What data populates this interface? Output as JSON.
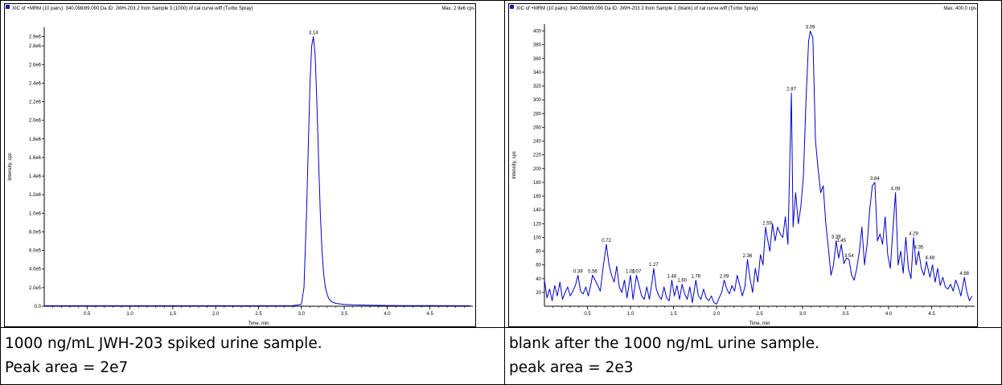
{
  "chart_data": [
    {
      "type": "line",
      "header": "XIC of +MRM (10 pairs): 340.098/89.090 Da ID: JWH-203 2 from Sample 3 (1000) of cal curve.wiff (Turbo Spray)",
      "max_label": "Max. 2.9e6 cps",
      "xlabel": "Time, min",
      "ylabel": "Intensity, cps",
      "xlim": [
        0.0,
        5.0
      ],
      "ylim": [
        0,
        3000000
      ],
      "x_ticks": [
        "0.5",
        "1.0",
        "1.5",
        "2.0",
        "2.5",
        "3.0",
        "3.5",
        "4.0",
        "4.5"
      ],
      "y_ticks": [
        "0.0",
        "2.0e5",
        "4.0e5",
        "6.0e5",
        "8.0e5",
        "1.0e6",
        "1.2e6",
        "1.4e6",
        "1.6e6",
        "1.8e6",
        "2.0e6",
        "2.2e6",
        "2.4e6",
        "2.6e6",
        "2.8e6",
        "2.9e6"
      ],
      "line_color": "#0000cc",
      "peak_labels": [
        {
          "x": 3.14,
          "label": "3.14",
          "value": 2900000
        }
      ],
      "series": [
        {
          "x": [
            0.0,
            0.5,
            1.0,
            1.5,
            2.0,
            2.5,
            2.9,
            3.0,
            3.03,
            3.06,
            3.08,
            3.1,
            3.12,
            3.14,
            3.16,
            3.18,
            3.2,
            3.22,
            3.24,
            3.26,
            3.28,
            3.3,
            3.32,
            3.35,
            3.4,
            3.5,
            3.6,
            3.8,
            4.0,
            4.5,
            4.97
          ],
          "values": [
            5000,
            5000,
            5000,
            5000,
            5000,
            5000,
            6000,
            20000,
            200000,
            1000000,
            1700000,
            2400000,
            2800000,
            2900000,
            2700000,
            2200000,
            1600000,
            1000000,
            600000,
            350000,
            200000,
            130000,
            80000,
            50000,
            30000,
            20000,
            15000,
            10000,
            8000,
            6000,
            5000
          ]
        }
      ]
    },
    {
      "type": "line",
      "header": "XIC of +MRM (10 pairs): 340.098/89.090 Da ID: JWH-203 2 from Sample 1 (blank) of cal curve.wiff (Turbo Spray)",
      "max_label": "Max. 400.0 cps",
      "xlabel": "Time, min",
      "ylabel": "Intensity, cps",
      "xlim": [
        0.0,
        5.0
      ],
      "ylim": [
        0,
        410
      ],
      "x_ticks": [
        "0.5",
        "1.0",
        "1.5",
        "2.0",
        "2.5",
        "3.0",
        "3.5",
        "4.0",
        "4.5"
      ],
      "y_ticks": [
        "20",
        "40",
        "60",
        "80",
        "100",
        "120",
        "140",
        "160",
        "180",
        "200",
        "220",
        "240",
        "260",
        "280",
        "300",
        "320",
        "340",
        "360",
        "380",
        "400"
      ],
      "line_color": "#0000cc",
      "peak_labels": [
        {
          "x": 0.39,
          "label": "0.39",
          "value": 45
        },
        {
          "x": 0.56,
          "label": "0.56",
          "value": 45
        },
        {
          "x": 0.72,
          "label": "0.72",
          "value": 90
        },
        {
          "x": 1.0,
          "label": "1.00",
          "value": 45
        },
        {
          "x": 1.07,
          "label": "1.07",
          "value": 45
        },
        {
          "x": 1.27,
          "label": "1.27",
          "value": 55
        },
        {
          "x": 1.48,
          "label": "1.48",
          "value": 38
        },
        {
          "x": 1.6,
          "label": "1.60",
          "value": 32
        },
        {
          "x": 1.76,
          "label": "1.76",
          "value": 38
        },
        {
          "x": 2.09,
          "label": "2.09",
          "value": 38
        },
        {
          "x": 2.36,
          "label": "2.36",
          "value": 68
        },
        {
          "x": 2.59,
          "label": "2.59",
          "value": 115
        },
        {
          "x": 2.87,
          "label": "2.87",
          "value": 310
        },
        {
          "x": 3.09,
          "label": "3.09",
          "value": 400
        },
        {
          "x": 3.39,
          "label": "3.39",
          "value": 95
        },
        {
          "x": 3.45,
          "label": "3.45",
          "value": 90
        },
        {
          "x": 3.54,
          "label": "3.54",
          "value": 68
        },
        {
          "x": 3.84,
          "label": "3.84",
          "value": 180
        },
        {
          "x": 4.08,
          "label": "4.08",
          "value": 165
        },
        {
          "x": 4.29,
          "label": "4.29",
          "value": 100
        },
        {
          "x": 4.35,
          "label": "4.35",
          "value": 80
        },
        {
          "x": 4.48,
          "label": "4.48",
          "value": 65
        },
        {
          "x": 4.88,
          "label": "4.88",
          "value": 42
        }
      ],
      "series": [
        {
          "x": [
            0.0,
            0.03,
            0.06,
            0.09,
            0.12,
            0.15,
            0.18,
            0.21,
            0.24,
            0.27,
            0.3,
            0.33,
            0.36,
            0.39,
            0.42,
            0.45,
            0.48,
            0.51,
            0.54,
            0.56,
            0.59,
            0.62,
            0.65,
            0.68,
            0.72,
            0.75,
            0.78,
            0.81,
            0.84,
            0.87,
            0.9,
            0.93,
            0.96,
            1.0,
            1.03,
            1.07,
            1.1,
            1.13,
            1.16,
            1.19,
            1.22,
            1.25,
            1.27,
            1.3,
            1.33,
            1.36,
            1.39,
            1.42,
            1.45,
            1.48,
            1.51,
            1.54,
            1.57,
            1.6,
            1.63,
            1.66,
            1.69,
            1.72,
            1.76,
            1.79,
            1.82,
            1.85,
            1.88,
            1.91,
            1.94,
            1.97,
            2.0,
            2.03,
            2.06,
            2.09,
            2.12,
            2.15,
            2.18,
            2.21,
            2.24,
            2.27,
            2.3,
            2.33,
            2.36,
            2.39,
            2.42,
            2.45,
            2.48,
            2.51,
            2.54,
            2.57,
            2.59,
            2.62,
            2.65,
            2.68,
            2.71,
            2.74,
            2.77,
            2.8,
            2.83,
            2.87,
            2.89,
            2.92,
            2.95,
            2.98,
            3.01,
            3.04,
            3.07,
            3.09,
            3.12,
            3.15,
            3.18,
            3.21,
            3.24,
            3.27,
            3.3,
            3.33,
            3.36,
            3.39,
            3.42,
            3.45,
            3.48,
            3.51,
            3.54,
            3.57,
            3.6,
            3.63,
            3.66,
            3.69,
            3.72,
            3.75,
            3.78,
            3.81,
            3.84,
            3.87,
            3.9,
            3.93,
            3.96,
            3.99,
            4.02,
            4.05,
            4.08,
            4.11,
            4.14,
            4.17,
            4.2,
            4.23,
            4.26,
            4.29,
            4.32,
            4.35,
            4.38,
            4.41,
            4.44,
            4.48,
            4.51,
            4.54,
            4.57,
            4.6,
            4.63,
            4.66,
            4.69,
            4.72,
            4.75,
            4.78,
            4.81,
            4.84,
            4.88,
            4.91,
            4.94,
            4.97
          ],
          "values": [
            38,
            12,
            25,
            8,
            30,
            15,
            35,
            10,
            20,
            28,
            15,
            22,
            30,
            45,
            22,
            18,
            28,
            15,
            32,
            45,
            38,
            30,
            22,
            55,
            90,
            60,
            45,
            35,
            58,
            28,
            20,
            38,
            12,
            45,
            10,
            45,
            30,
            15,
            10,
            28,
            10,
            35,
            55,
            25,
            15,
            10,
            28,
            12,
            8,
            38,
            15,
            30,
            10,
            32,
            18,
            10,
            28,
            5,
            38,
            15,
            10,
            25,
            12,
            8,
            15,
            5,
            3,
            12,
            20,
            38,
            25,
            18,
            30,
            22,
            45,
            30,
            15,
            28,
            68,
            40,
            20,
            55,
            35,
            75,
            60,
            115,
            100,
            80,
            120,
            95,
            115,
            105,
            100,
            130,
            90,
            310,
            115,
            165,
            120,
            145,
            190,
            300,
            385,
            400,
            390,
            240,
            200,
            165,
            175,
            120,
            85,
            45,
            60,
            95,
            70,
            90,
            62,
            70,
            68,
            45,
            38,
            55,
            80,
            115,
            60,
            90,
            140,
            175,
            180,
            95,
            105,
            90,
            130,
            75,
            55,
            110,
            165,
            60,
            80,
            48,
            100,
            55,
            40,
            100,
            60,
            80,
            55,
            45,
            65,
            42,
            60,
            35,
            55,
            30,
            42,
            28,
            25,
            32,
            22,
            38,
            28,
            15,
            42,
            20,
            8,
            15
          ]
        }
      ]
    }
  ],
  "captions": {
    "left_line1": "1000 ng/mL JWH-203 spiked urine sample.",
    "left_line2": "Peak area = 2e7",
    "right_line1": "blank after the 1000 ng/mL urine sample.",
    "right_line2": "peak area = 2e3"
  }
}
